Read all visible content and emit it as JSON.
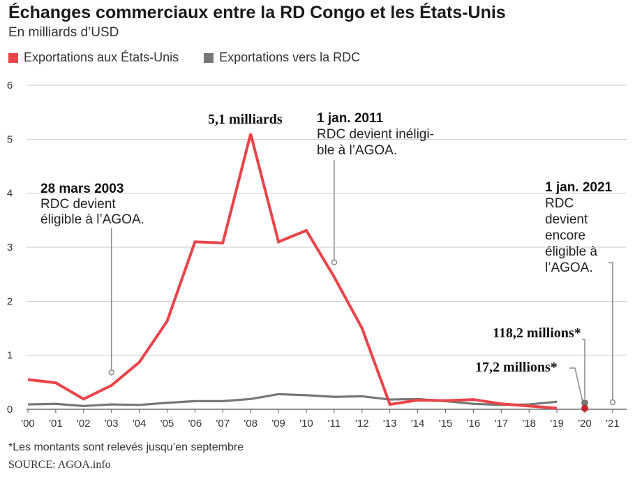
{
  "header": {
    "title": "Échanges commerciaux entre la RD Congo et les États-Unis",
    "subtitle": "En milliards d’USD"
  },
  "legend": [
    {
      "label": "Exportations aux États-Unis",
      "color": "#e8444a"
    },
    {
      "label": "Exportations vers la RDC",
      "color": "#777777"
    }
  ],
  "footer": {
    "footnote": "*Les montants sont relevés jusqu’en septembre",
    "source": "SOURCE: AGOA.info"
  },
  "chart_data": {
    "type": "line",
    "title": "Échanges commerciaux entre la RD Congo et les États-Unis",
    "subtitle": "En milliards d’USD",
    "x": [
      "'00",
      "'01",
      "'02",
      "'03",
      "'04",
      "'05",
      "'06",
      "'07",
      "'08",
      "'09",
      "'10",
      "'11",
      "'12",
      "'13",
      "'14",
      "'15",
      "'16",
      "'17",
      "'18",
      "'19",
      "'20",
      "'21"
    ],
    "ylim": [
      0,
      6
    ],
    "yticks": [
      0,
      1,
      2,
      3,
      4,
      5,
      6
    ],
    "grid": true,
    "legend_position": "top-left",
    "series": [
      {
        "name": "Exportations aux États-Unis",
        "color": "#e8444a",
        "values": [
          0.55,
          0.49,
          0.19,
          0.44,
          0.87,
          1.63,
          3.1,
          3.08,
          5.1,
          3.1,
          3.31,
          2.45,
          1.5,
          0.09,
          0.17,
          0.16,
          0.18,
          0.1,
          0.06,
          0.02,
          null,
          null
        ]
      },
      {
        "name": "Exportations vers la RDC",
        "color": "#777777",
        "values": [
          0.09,
          0.1,
          0.06,
          0.09,
          0.08,
          0.12,
          0.15,
          0.15,
          0.19,
          0.28,
          0.26,
          0.23,
          0.24,
          0.18,
          0.19,
          0.15,
          0.1,
          0.08,
          0.09,
          0.14,
          null,
          null
        ]
      }
    ],
    "points": [
      {
        "x": "'20",
        "y": 0.1182,
        "color": "#777777"
      },
      {
        "x": "'20",
        "y": 0.0172,
        "color": "#c0262c"
      }
    ],
    "annotations": [
      {
        "title": "28 mars 2003",
        "text": [
          "RDC devient",
          "éligible à l’AGOA."
        ],
        "x": "'03"
      },
      {
        "title": "5,1 milliards",
        "text": [],
        "x": "'08"
      },
      {
        "title": "1 jan. 2011",
        "text": [
          "RDC devient inéligi-",
          "ble à l’AGOA."
        ],
        "x": "'11"
      },
      {
        "title": "1 jan. 2021",
        "text": [
          "RDC",
          "devient",
          "encore",
          "éligible à",
          "l’AGOA."
        ],
        "x": "'21"
      },
      {
        "title": "118,2 millions*",
        "text": [],
        "x": "'20"
      },
      {
        "title": "17,2 millions*",
        "text": [],
        "x": "'20"
      }
    ]
  }
}
